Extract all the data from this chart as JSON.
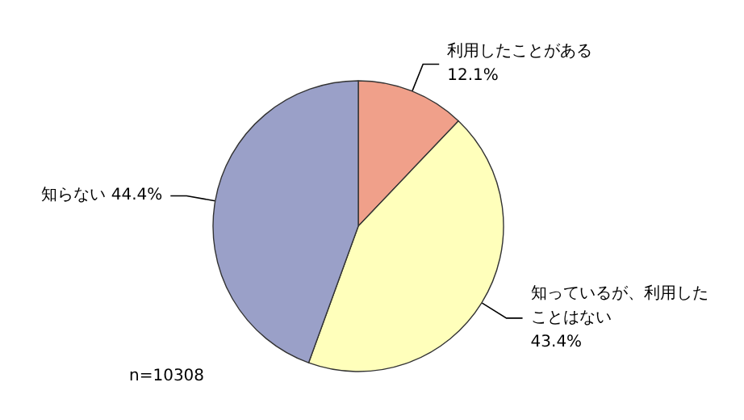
{
  "chart_data": {
    "type": "pie",
    "categories": [
      "利用したことがある",
      "知っているが、利用したことはない",
      "知らない"
    ],
    "values": [
      12.1,
      43.4,
      44.4
    ],
    "value_labels": [
      "12.1%",
      "43.4%",
      "44.4%"
    ],
    "colors": [
      "#f0a08a",
      "#ffffbb",
      "#9aa0c8"
    ],
    "annotations": [
      "n=10308"
    ],
    "legend": false
  }
}
